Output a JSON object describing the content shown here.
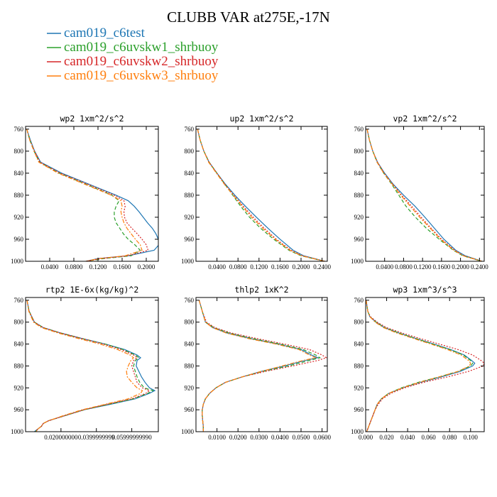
{
  "title": "CLUBB VAR at275E,-17N",
  "legend": [
    {
      "label": "cam019_c6test",
      "color": "#1f77b4"
    },
    {
      "label": "cam019_c6uvskw1_shrbuoy",
      "color": "#2ca02c"
    },
    {
      "label": "cam019_c6uvskw2_shrbuoy",
      "color": "#d62728"
    },
    {
      "label": "cam019_c6uvskw3_shrbuoy",
      "color": "#ff7f0e"
    }
  ],
  "chart_data": [
    {
      "type": "line",
      "title": "wp2   1xm^2/s^2",
      "xlim": [
        0,
        0.22
      ],
      "ylim": [
        1000,
        755
      ],
      "xticks": [
        0.04,
        0.08,
        0.12,
        0.16,
        0.2
      ],
      "xtick_labels": [
        "0.0400",
        "0.0800",
        "0.1200",
        "0.1600",
        "0.2000"
      ],
      "yticks": [
        760,
        800,
        840,
        880,
        920,
        960,
        1000
      ],
      "ytick_labels": [
        "760",
        "800",
        "840",
        "880",
        "920",
        "960",
        "1000"
      ],
      "y": [
        760,
        780,
        800,
        820,
        840,
        860,
        880,
        890,
        900,
        910,
        920,
        930,
        940,
        950,
        960,
        970,
        980,
        990,
        995,
        1000
      ],
      "series": [
        {
          "values": [
            0.002,
            0.008,
            0.015,
            0.025,
            0.06,
            0.105,
            0.15,
            0.17,
            0.18,
            0.188,
            0.195,
            0.202,
            0.21,
            0.216,
            0.22,
            0.221,
            0.213,
            0.17,
            0.12,
            0.1
          ]
        },
        {
          "values": [
            0.002,
            0.007,
            0.014,
            0.023,
            0.056,
            0.1,
            0.143,
            0.155,
            0.15,
            0.147,
            0.147,
            0.15,
            0.156,
            0.162,
            0.17,
            0.181,
            0.19,
            0.175,
            0.13,
            0.1
          ]
        },
        {
          "values": [
            0.002,
            0.007,
            0.015,
            0.024,
            0.058,
            0.103,
            0.147,
            0.163,
            0.165,
            0.163,
            0.164,
            0.168,
            0.176,
            0.185,
            0.193,
            0.2,
            0.203,
            0.17,
            0.125,
            0.1
          ]
        },
        {
          "values": [
            0.002,
            0.007,
            0.014,
            0.022,
            0.054,
            0.098,
            0.142,
            0.158,
            0.16,
            0.158,
            0.16,
            0.163,
            0.168,
            0.175,
            0.182,
            0.19,
            0.193,
            0.165,
            0.122,
            0.1
          ]
        }
      ]
    },
    {
      "type": "line",
      "title": "up2   1xm^2/s^2",
      "xlim": [
        0,
        0.25
      ],
      "ylim": [
        1000,
        755
      ],
      "xticks": [
        0.04,
        0.08,
        0.12,
        0.16,
        0.2,
        0.24
      ],
      "xtick_labels": [
        "0.0400",
        "0.0800",
        "0.1200",
        "0.1600",
        "0.2000",
        "0.2400"
      ],
      "yticks": [
        760,
        800,
        840,
        880,
        920,
        960,
        1000
      ],
      "ytick_labels": [
        "760",
        "800",
        "840",
        "880",
        "920",
        "960",
        "1000"
      ],
      "y": [
        760,
        780,
        800,
        820,
        840,
        860,
        880,
        900,
        920,
        940,
        960,
        980,
        990,
        1000
      ],
      "series": [
        {
          "values": [
            0.003,
            0.008,
            0.015,
            0.025,
            0.04,
            0.056,
            0.074,
            0.094,
            0.115,
            0.137,
            0.16,
            0.185,
            0.205,
            0.245
          ]
        },
        {
          "values": [
            0.003,
            0.008,
            0.015,
            0.025,
            0.04,
            0.055,
            0.07,
            0.085,
            0.102,
            0.123,
            0.148,
            0.177,
            0.2,
            0.245
          ]
        },
        {
          "values": [
            0.003,
            0.008,
            0.015,
            0.025,
            0.04,
            0.055,
            0.072,
            0.09,
            0.109,
            0.13,
            0.153,
            0.181,
            0.203,
            0.245
          ]
        },
        {
          "values": [
            0.003,
            0.008,
            0.015,
            0.024,
            0.039,
            0.054,
            0.071,
            0.088,
            0.106,
            0.127,
            0.151,
            0.179,
            0.201,
            0.245
          ]
        }
      ]
    },
    {
      "type": "line",
      "title": "vp2   1xm^2/s^2",
      "xlim": [
        0,
        0.25
      ],
      "ylim": [
        1000,
        755
      ],
      "xticks": [
        0.04,
        0.08,
        0.12,
        0.16,
        0.2,
        0.24
      ],
      "xtick_labels": [
        "0.0400",
        "0.0800",
        "0.1200",
        "0.1600",
        "0.2000",
        "0.2400"
      ],
      "yticks": [
        760,
        800,
        840,
        880,
        920,
        960,
        1000
      ],
      "ytick_labels": [
        "760",
        "800",
        "840",
        "880",
        "920",
        "960",
        "1000"
      ],
      "y": [
        760,
        780,
        800,
        820,
        840,
        860,
        880,
        900,
        920,
        940,
        960,
        980,
        990,
        1000
      ],
      "series": [
        {
          "values": [
            0.003,
            0.008,
            0.015,
            0.025,
            0.04,
            0.058,
            0.08,
            0.104,
            0.125,
            0.145,
            0.165,
            0.19,
            0.21,
            0.245
          ]
        },
        {
          "values": [
            0.003,
            0.008,
            0.015,
            0.024,
            0.038,
            0.055,
            0.07,
            0.085,
            0.105,
            0.128,
            0.155,
            0.185,
            0.205,
            0.245
          ]
        },
        {
          "values": [
            0.003,
            0.008,
            0.015,
            0.025,
            0.039,
            0.057,
            0.076,
            0.097,
            0.117,
            0.138,
            0.16,
            0.188,
            0.207,
            0.245
          ]
        },
        {
          "values": [
            0.003,
            0.008,
            0.015,
            0.024,
            0.038,
            0.056,
            0.074,
            0.094,
            0.114,
            0.136,
            0.158,
            0.186,
            0.206,
            0.245
          ]
        }
      ]
    },
    {
      "type": "line",
      "title": "rtp2   1E-6x(kg/kg)^2",
      "xlim": [
        0,
        7.5
      ],
      "ylim": [
        1000,
        755
      ],
      "xticks": [
        2,
        4,
        6
      ],
      "xtick_labels": [
        "0.020000000",
        "0.0399999999",
        "0.05999999990"
      ],
      "yticks": [
        760,
        800,
        840,
        880,
        920,
        960,
        1000
      ],
      "ytick_labels": [
        "760",
        "800",
        "840",
        "880",
        "920",
        "960",
        "1000"
      ],
      "y": [
        760,
        780,
        800,
        810,
        820,
        830,
        840,
        850,
        860,
        865,
        870,
        880,
        890,
        900,
        910,
        920,
        925,
        930,
        940,
        950,
        960,
        970,
        980,
        985,
        990,
        995,
        1000
      ],
      "series": [
        {
          "values": [
            0.08,
            0.2,
            0.5,
            1.0,
            2.0,
            3.2,
            4.5,
            5.6,
            6.3,
            6.5,
            6.3,
            6.25,
            6.4,
            6.55,
            6.75,
            7.0,
            7.3,
            7.0,
            6.2,
            4.8,
            3.3,
            2.3,
            1.3,
            1.0,
            0.9,
            0.7,
            0.5
          ]
        },
        {
          "values": [
            0.08,
            0.2,
            0.5,
            1.0,
            2.0,
            3.2,
            4.5,
            5.5,
            6.2,
            6.4,
            6.2,
            6.1,
            6.2,
            6.3,
            6.45,
            6.7,
            7.2,
            6.9,
            6.1,
            4.7,
            3.3,
            2.3,
            1.3,
            1.0,
            0.9,
            0.7,
            0.55
          ]
        },
        {
          "values": [
            0.08,
            0.2,
            0.5,
            1.0,
            2.0,
            3.2,
            4.4,
            5.4,
            6.1,
            6.3,
            6.1,
            6.0,
            6.1,
            6.2,
            6.3,
            6.6,
            7.0,
            6.8,
            6.0,
            4.6,
            3.3,
            2.3,
            1.3,
            1.0,
            0.9,
            0.7,
            0.55
          ]
        },
        {
          "values": [
            0.08,
            0.18,
            0.45,
            0.9,
            1.85,
            3.0,
            4.2,
            5.2,
            5.9,
            6.1,
            5.95,
            5.8,
            5.7,
            5.75,
            6.0,
            6.3,
            6.6,
            6.5,
            5.8,
            4.5,
            3.2,
            2.2,
            1.3,
            1.0,
            0.9,
            0.7,
            0.6
          ]
        }
      ]
    },
    {
      "type": "line",
      "title": "thlp2   1xK^2",
      "xlim": [
        0,
        0.0625
      ],
      "ylim": [
        1000,
        755
      ],
      "xticks": [
        0.01,
        0.02,
        0.03,
        0.04,
        0.05,
        0.06
      ],
      "xtick_labels": [
        "0.0100",
        "0.0200",
        "0.0300",
        "0.0400",
        "0.0500",
        "0.0600"
      ],
      "yticks": [
        760,
        800,
        840,
        880,
        920,
        960,
        1000
      ],
      "ytick_labels": [
        "760",
        "800",
        "840",
        "880",
        "920",
        "960",
        "1000"
      ],
      "y": [
        760,
        780,
        800,
        810,
        820,
        830,
        840,
        850,
        860,
        865,
        870,
        880,
        890,
        900,
        910,
        920,
        930,
        940,
        950,
        960,
        970,
        980,
        990,
        1000
      ],
      "series": [
        {
          "values": [
            0.0015,
            0.003,
            0.0045,
            0.008,
            0.015,
            0.026,
            0.039,
            0.05,
            0.055,
            0.058,
            0.052,
            0.042,
            0.031,
            0.022,
            0.014,
            0.0095,
            0.0065,
            0.0045,
            0.0035,
            0.003,
            0.003,
            0.0032,
            0.0035,
            0.0035
          ]
        },
        {
          "values": [
            0.0015,
            0.003,
            0.0045,
            0.0085,
            0.016,
            0.027,
            0.04,
            0.051,
            0.057,
            0.059,
            0.054,
            0.044,
            0.032,
            0.022,
            0.014,
            0.0095,
            0.0065,
            0.0045,
            0.0035,
            0.003,
            0.003,
            0.0032,
            0.0035,
            0.0035
          ]
        },
        {
          "values": [
            0.0015,
            0.003,
            0.005,
            0.009,
            0.017,
            0.029,
            0.042,
            0.054,
            0.06,
            0.062,
            0.058,
            0.046,
            0.033,
            0.022,
            0.014,
            0.0095,
            0.0065,
            0.0045,
            0.0035,
            0.003,
            0.003,
            0.0032,
            0.0035,
            0.0035
          ]
        },
        {
          "values": [
            0.0015,
            0.003,
            0.0045,
            0.0078,
            0.0145,
            0.025,
            0.038,
            0.049,
            0.054,
            0.057,
            0.051,
            0.041,
            0.031,
            0.022,
            0.014,
            0.0095,
            0.0065,
            0.0045,
            0.0035,
            0.003,
            0.003,
            0.0032,
            0.0035,
            0.0035
          ]
        }
      ]
    },
    {
      "type": "line",
      "title": "wp3   1xm^3/s^3",
      "xlim": [
        0,
        0.113
      ],
      "ylim": [
        1000,
        755
      ],
      "xticks": [
        0.0,
        0.02,
        0.04,
        0.06,
        0.08,
        0.1
      ],
      "xtick_labels": [
        "0.000",
        "0.020",
        "0.040",
        "0.060",
        "0.080",
        "0.100"
      ],
      "yticks": [
        760,
        800,
        840,
        880,
        920,
        960,
        1000
      ],
      "ytick_labels": [
        "760",
        "800",
        "840",
        "880",
        "920",
        "960",
        "1000"
      ],
      "y": [
        760,
        780,
        790,
        800,
        810,
        820,
        830,
        840,
        850,
        860,
        870,
        875,
        880,
        890,
        900,
        910,
        920,
        930,
        940,
        950,
        960,
        970,
        980,
        990,
        1000
      ],
      "series": [
        {
          "values": [
            0.0005,
            0.002,
            0.004,
            0.01,
            0.018,
            0.032,
            0.048,
            0.065,
            0.081,
            0.094,
            0.101,
            0.104,
            0.102,
            0.09,
            0.072,
            0.052,
            0.035,
            0.022,
            0.015,
            0.011,
            0.009,
            0.007,
            0.005,
            0.003,
            0.001
          ]
        },
        {
          "values": [
            0.0005,
            0.002,
            0.004,
            0.01,
            0.018,
            0.032,
            0.048,
            0.064,
            0.08,
            0.093,
            0.1,
            0.102,
            0.1,
            0.088,
            0.07,
            0.05,
            0.034,
            0.022,
            0.015,
            0.011,
            0.009,
            0.007,
            0.005,
            0.003,
            0.001
          ]
        },
        {
          "values": [
            0.0005,
            0.002,
            0.0045,
            0.011,
            0.02,
            0.035,
            0.052,
            0.07,
            0.088,
            0.102,
            0.11,
            0.113,
            0.112,
            0.098,
            0.078,
            0.055,
            0.037,
            0.024,
            0.016,
            0.012,
            0.009,
            0.007,
            0.005,
            0.003,
            0.001
          ]
        },
        {
          "values": [
            0.0005,
            0.002,
            0.004,
            0.009,
            0.017,
            0.03,
            0.046,
            0.062,
            0.078,
            0.091,
            0.098,
            0.1,
            0.099,
            0.088,
            0.07,
            0.051,
            0.035,
            0.022,
            0.015,
            0.011,
            0.009,
            0.007,
            0.005,
            0.003,
            0.001
          ]
        }
      ]
    }
  ]
}
